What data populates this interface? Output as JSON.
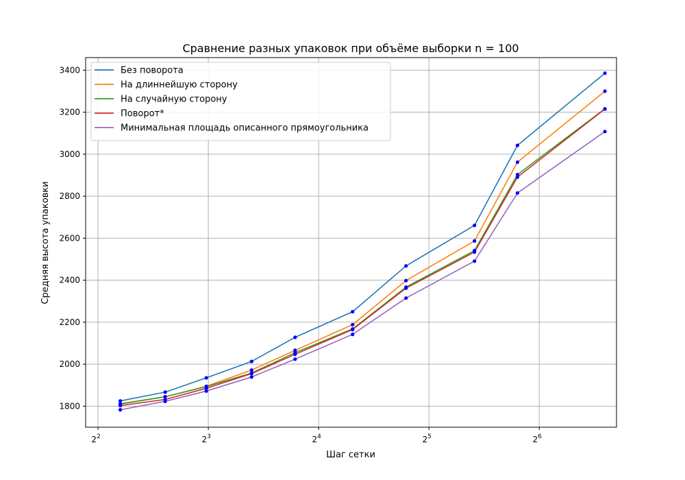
{
  "chart_data": {
    "type": "line",
    "title": "Сравнение разных упаковок при объёме выборки n = 100",
    "xlabel": "Шаг сетки",
    "ylabel": "Средняя высота упаковки",
    "x_scale": "log2",
    "x_tick_labels": [
      {
        "value": 4,
        "base": "2",
        "exp": "2"
      },
      {
        "value": 8,
        "base": "2",
        "exp": "3"
      },
      {
        "value": 16,
        "base": "2",
        "exp": "4"
      },
      {
        "value": 32,
        "base": "2",
        "exp": "5"
      },
      {
        "value": 64,
        "base": "2",
        "exp": "6"
      }
    ],
    "y_ticks": [
      1800,
      2000,
      2200,
      2400,
      2600,
      2800,
      3000,
      3200,
      3400
    ],
    "xlim": [
      3.7,
      104
    ],
    "ylim": [
      1700,
      3460
    ],
    "grid": true,
    "legend_position": "top-left",
    "marker_color": "#0000ff",
    "x": [
      4.6,
      6.1,
      7.9,
      10.5,
      13.8,
      19.8,
      27.7,
      42.6,
      55.8,
      96.7
    ],
    "series": [
      {
        "name": "Без поворота",
        "color": "#1f77b4",
        "values": [
          1825,
          1867,
          1935,
          2013,
          2128,
          2250,
          2468,
          2661,
          3042,
          3386
        ]
      },
      {
        "name": "На длиннейшую сторону",
        "color": "#ff7f0e",
        "values": [
          1812,
          1845,
          1895,
          1972,
          2066,
          2188,
          2398,
          2587,
          2962,
          3300
        ]
      },
      {
        "name": "На случайную сторону",
        "color": "#2ca02c",
        "values": [
          1810,
          1845,
          1893,
          1958,
          2055,
          2168,
          2367,
          2541,
          2903,
          3216
        ]
      },
      {
        "name": "Поворот*",
        "color": "#d62728",
        "values": [
          1803,
          1832,
          1885,
          1955,
          2047,
          2165,
          2362,
          2534,
          2891,
          3215
        ]
      },
      {
        "name": "Минимальная площадь описанного прямоугольника",
        "color": "#9467bd",
        "values": [
          1783,
          1823,
          1872,
          1939,
          2024,
          2142,
          2315,
          2491,
          2815,
          3108
        ]
      }
    ]
  }
}
